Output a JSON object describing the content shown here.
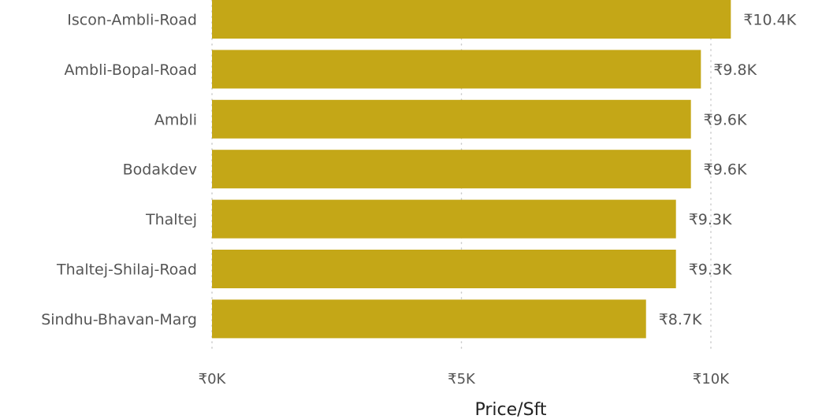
{
  "colors": {
    "bar": "#C4A717",
    "text": "#555555",
    "title": "#222222",
    "grid": "#c8c8c8"
  },
  "chart_data": {
    "type": "bar",
    "orientation": "horizontal",
    "categories": [
      "Iscon-Ambli-Road",
      "Ambli-Bopal-Road",
      "Ambli",
      "Bodakdev",
      "Thaltej",
      "Thaltej-Shilaj-Road",
      "Sindhu-Bhavan-Marg"
    ],
    "values": [
      10.4,
      9.8,
      9.6,
      9.6,
      9.3,
      9.3,
      8.7
    ],
    "value_labels": [
      "₹10.4K",
      "₹9.8K",
      "₹9.6K",
      "₹9.6K",
      "₹9.3K",
      "₹9.3K",
      "₹8.7K"
    ],
    "unit": "K",
    "xticks": [
      0,
      5,
      10
    ],
    "xtick_labels": [
      "₹0K",
      "₹5K",
      "₹10K"
    ],
    "xlim": [
      0,
      10.4
    ],
    "xlabel": "Price/Sft",
    "ylabel": "",
    "title": "",
    "grid": true
  }
}
